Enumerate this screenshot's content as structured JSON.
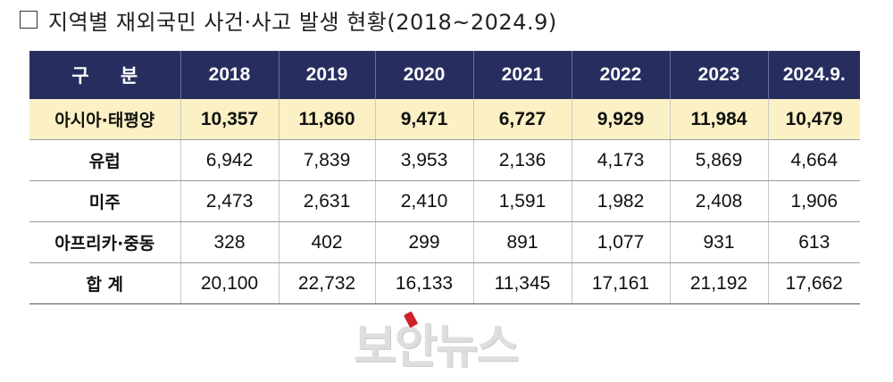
{
  "title": "지역별 재외국민 사건·사고 발생 현황(2018~2024.9)",
  "table": {
    "label_header": "구 분",
    "years": [
      "2018",
      "2019",
      "2020",
      "2021",
      "2022",
      "2023",
      "2024.9."
    ],
    "rows": [
      {
        "region": "아시아·태평양",
        "values": [
          "10,357",
          "11,860",
          "9,471",
          "6,727",
          "9,929",
          "11,984",
          "10,479"
        ]
      },
      {
        "region": "유럽",
        "values": [
          "6,942",
          "7,839",
          "3,953",
          "2,136",
          "4,173",
          "5,869",
          "4,664"
        ]
      },
      {
        "region": "미주",
        "values": [
          "2,473",
          "2,631",
          "2,410",
          "1,591",
          "1,982",
          "2,408",
          "1,906"
        ]
      },
      {
        "region": "아프리카·중동",
        "values": [
          "328",
          "402",
          "299",
          "891",
          "1,077",
          "931",
          "613"
        ]
      },
      {
        "region": "합 계",
        "values": [
          "20,100",
          "22,732",
          "16,133",
          "11,345",
          "17,161",
          "21,192",
          "17,662"
        ]
      }
    ]
  },
  "watermark": "보안뉴스",
  "colors": {
    "header_bg": "#272e5f",
    "highlight_row": "#fbf1c4"
  }
}
